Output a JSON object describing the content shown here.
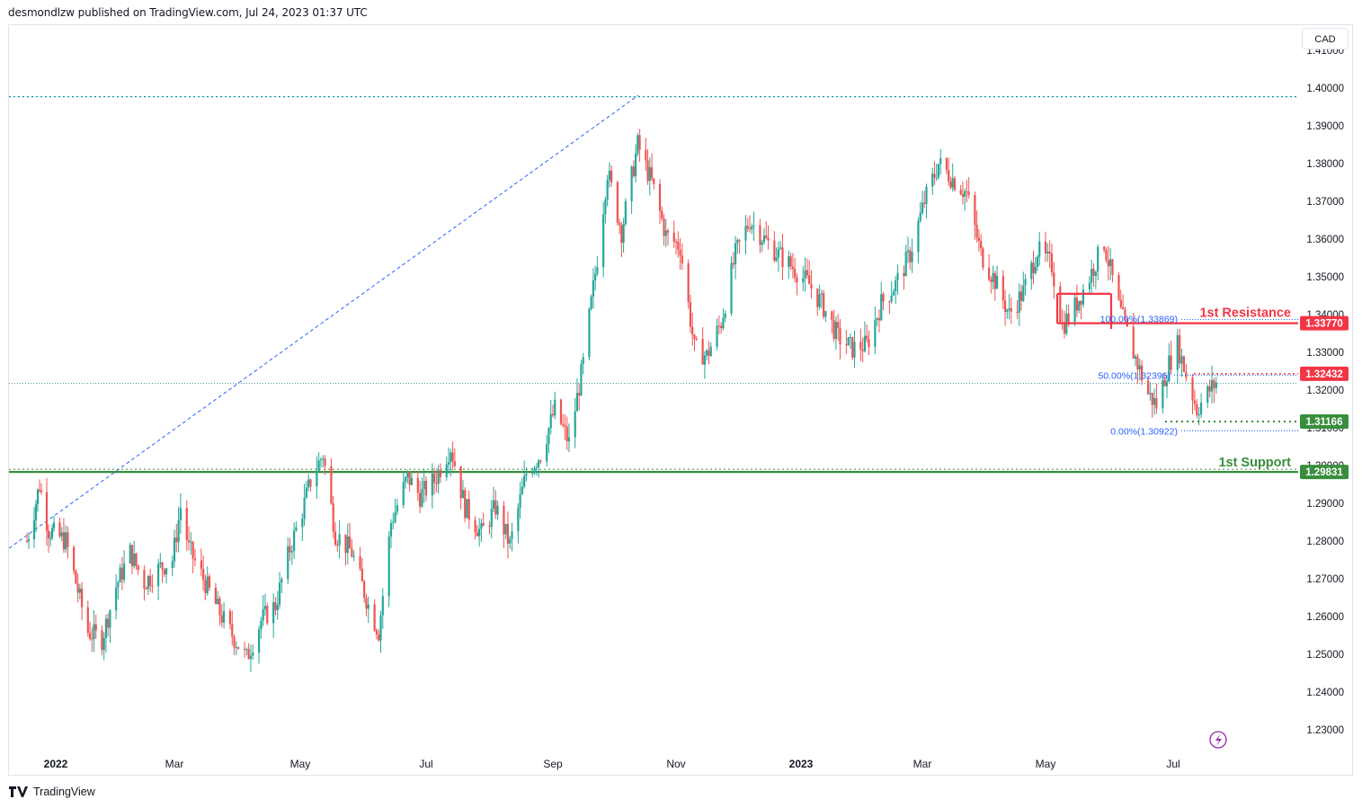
{
  "header": {
    "publisher_text": "desmondlzw published on TradingView.com, Jul 24, 2023 01:37 UTC"
  },
  "currency_button": {
    "label": "CAD"
  },
  "footer": {
    "brand": "TradingView",
    "logo_icon": "tradingview-logo-icon"
  },
  "lightning_icon": "lightning-icon",
  "colors": {
    "up": "#26a69a",
    "down": "#ef5350",
    "resistance": "#f23645",
    "support": "#388e3c",
    "fib": "#2962ff",
    "axis_text": "#131722"
  },
  "chart_data": {
    "type": "candlestick",
    "symbol_currency": "CAD",
    "y_axis": {
      "ylim": [
        1.2225,
        1.4135
      ],
      "ticks": [
        "1.23000",
        "1.24000",
        "1.25000",
        "1.26000",
        "1.27000",
        "1.28000",
        "1.29000",
        "1.30000",
        "1.31000",
        "1.32000",
        "1.33000",
        "1.34000",
        "1.35000",
        "1.36000",
        "1.37000",
        "1.38000",
        "1.39000",
        "1.40000",
        "1.41000"
      ]
    },
    "x_axis": {
      "labels": [
        {
          "label": "2022",
          "date": "2022-01-01",
          "bold": true
        },
        {
          "label": "Mar",
          "date": "2022-03-01",
          "bold": false
        },
        {
          "label": "May",
          "date": "2022-05-01",
          "bold": false
        },
        {
          "label": "Jul",
          "date": "2022-07-01",
          "bold": false
        },
        {
          "label": "Sep",
          "date": "2022-09-01",
          "bold": false
        },
        {
          "label": "Nov",
          "date": "2022-11-01",
          "bold": false
        },
        {
          "label": "2023",
          "date": "2023-01-01",
          "bold": true
        },
        {
          "label": "Mar",
          "date": "2023-03-01",
          "bold": false
        },
        {
          "label": "May",
          "date": "2023-05-01",
          "bold": false
        },
        {
          "label": "Jul",
          "date": "2023-07-01",
          "bold": false
        }
      ]
    },
    "trend_path": [
      {
        "date": "2021-12-16",
        "close": 1.28
      },
      {
        "date": "2021-12-20",
        "close": 1.288
      },
      {
        "date": "2021-12-23",
        "close": 1.295
      },
      {
        "date": "2021-12-28",
        "close": 1.283
      },
      {
        "date": "2022-01-06",
        "close": 1.28
      },
      {
        "date": "2022-01-11",
        "close": 1.269
      },
      {
        "date": "2022-01-17",
        "close": 1.256
      },
      {
        "date": "2022-01-24",
        "close": 1.254
      },
      {
        "date": "2022-01-31",
        "close": 1.268
      },
      {
        "date": "2022-02-07",
        "close": 1.277
      },
      {
        "date": "2022-02-14",
        "close": 1.269
      },
      {
        "date": "2022-02-22",
        "close": 1.273
      },
      {
        "date": "2022-02-28",
        "close": 1.275
      },
      {
        "date": "2022-03-04",
        "close": 1.289
      },
      {
        "date": "2022-03-08",
        "close": 1.278
      },
      {
        "date": "2022-03-15",
        "close": 1.27
      },
      {
        "date": "2022-03-22",
        "close": 1.262
      },
      {
        "date": "2022-03-28",
        "close": 1.256
      },
      {
        "date": "2022-04-05",
        "close": 1.249
      },
      {
        "date": "2022-04-12",
        "close": 1.259
      },
      {
        "date": "2022-04-19",
        "close": 1.263
      },
      {
        "date": "2022-04-26",
        "close": 1.278
      },
      {
        "date": "2022-05-02",
        "close": 1.288
      },
      {
        "date": "2022-05-06",
        "close": 1.296
      },
      {
        "date": "2022-05-12",
        "close": 1.303
      },
      {
        "date": "2022-05-18",
        "close": 1.282
      },
      {
        "date": "2022-05-26",
        "close": 1.277
      },
      {
        "date": "2022-06-03",
        "close": 1.263
      },
      {
        "date": "2022-06-08",
        "close": 1.256
      },
      {
        "date": "2022-06-14",
        "close": 1.285
      },
      {
        "date": "2022-06-22",
        "close": 1.297
      },
      {
        "date": "2022-06-28",
        "close": 1.292
      },
      {
        "date": "2022-07-05",
        "close": 1.296
      },
      {
        "date": "2022-07-13",
        "close": 1.305
      },
      {
        "date": "2022-07-20",
        "close": 1.289
      },
      {
        "date": "2022-07-28",
        "close": 1.282
      },
      {
        "date": "2022-08-04",
        "close": 1.289
      },
      {
        "date": "2022-08-11",
        "close": 1.279
      },
      {
        "date": "2022-08-19",
        "close": 1.298
      },
      {
        "date": "2022-08-26",
        "close": 1.303
      },
      {
        "date": "2022-09-02",
        "close": 1.315
      },
      {
        "date": "2022-09-09",
        "close": 1.306
      },
      {
        "date": "2022-09-16",
        "close": 1.327
      },
      {
        "date": "2022-09-23",
        "close": 1.355
      },
      {
        "date": "2022-09-28",
        "close": 1.378
      },
      {
        "date": "2022-10-05",
        "close": 1.362
      },
      {
        "date": "2022-10-13",
        "close": 1.385
      },
      {
        "date": "2022-10-20",
        "close": 1.375
      },
      {
        "date": "2022-10-27",
        "close": 1.361
      },
      {
        "date": "2022-11-03",
        "close": 1.358
      },
      {
        "date": "2022-11-10",
        "close": 1.331
      },
      {
        "date": "2022-11-16",
        "close": 1.329
      },
      {
        "date": "2022-11-23",
        "close": 1.338
      },
      {
        "date": "2022-11-30",
        "close": 1.356
      },
      {
        "date": "2022-12-07",
        "close": 1.365
      },
      {
        "date": "2022-12-14",
        "close": 1.36
      },
      {
        "date": "2022-12-21",
        "close": 1.356
      },
      {
        "date": "2022-12-29",
        "close": 1.352
      },
      {
        "date": "2023-01-05",
        "close": 1.348
      },
      {
        "date": "2023-01-12",
        "close": 1.342
      },
      {
        "date": "2023-01-19",
        "close": 1.334
      },
      {
        "date": "2023-01-26",
        "close": 1.331
      },
      {
        "date": "2023-02-02",
        "close": 1.332
      },
      {
        "date": "2023-02-09",
        "close": 1.343
      },
      {
        "date": "2023-02-16",
        "close": 1.348
      },
      {
        "date": "2023-02-23",
        "close": 1.356
      },
      {
        "date": "2023-03-02",
        "close": 1.37
      },
      {
        "date": "2023-03-09",
        "close": 1.38
      },
      {
        "date": "2023-03-16",
        "close": 1.376
      },
      {
        "date": "2023-03-23",
        "close": 1.372
      },
      {
        "date": "2023-03-30",
        "close": 1.356
      },
      {
        "date": "2023-04-06",
        "close": 1.349
      },
      {
        "date": "2023-04-13",
        "close": 1.34
      },
      {
        "date": "2023-04-20",
        "close": 1.346
      },
      {
        "date": "2023-04-27",
        "close": 1.357
      },
      {
        "date": "2023-05-04",
        "close": 1.353
      },
      {
        "date": "2023-05-09",
        "close": 1.337
      },
      {
        "date": "2023-05-15",
        "close": 1.342
      },
      {
        "date": "2023-05-22",
        "close": 1.35
      },
      {
        "date": "2023-05-29",
        "close": 1.359
      },
      {
        "date": "2023-06-05",
        "close": 1.342
      },
      {
        "date": "2023-06-12",
        "close": 1.33
      },
      {
        "date": "2023-06-19",
        "close": 1.319
      },
      {
        "date": "2023-06-23",
        "close": 1.316
      },
      {
        "date": "2023-06-29",
        "close": 1.327
      },
      {
        "date": "2023-07-03",
        "close": 1.332
      },
      {
        "date": "2023-07-07",
        "close": 1.324
      },
      {
        "date": "2023-07-12",
        "close": 1.315
      },
      {
        "date": "2023-07-18",
        "close": 1.32
      },
      {
        "date": "2023-07-21",
        "close": 1.322
      }
    ],
    "levels": {
      "resistance": {
        "label": "1st Resistance",
        "price_label": "1.33770",
        "value": 1.3377
      },
      "support": {
        "label": "1st Support",
        "price_label": "1.29831",
        "value": 1.29831
      },
      "pivot": {
        "price_label": "1.32432",
        "value": 1.32432
      },
      "swing_low": {
        "price_label": "1.31166",
        "value": 1.31166
      },
      "top_dotted": {
        "value": 1.3977
      }
    },
    "fib": {
      "label_100": "100.00%(1.33869)",
      "label_50": "50.00%(1.32396)",
      "label_0": "0.00%(1.30922)",
      "v100": 1.33869,
      "v50": 1.32396,
      "v0": 1.30922
    },
    "grid": false
  }
}
